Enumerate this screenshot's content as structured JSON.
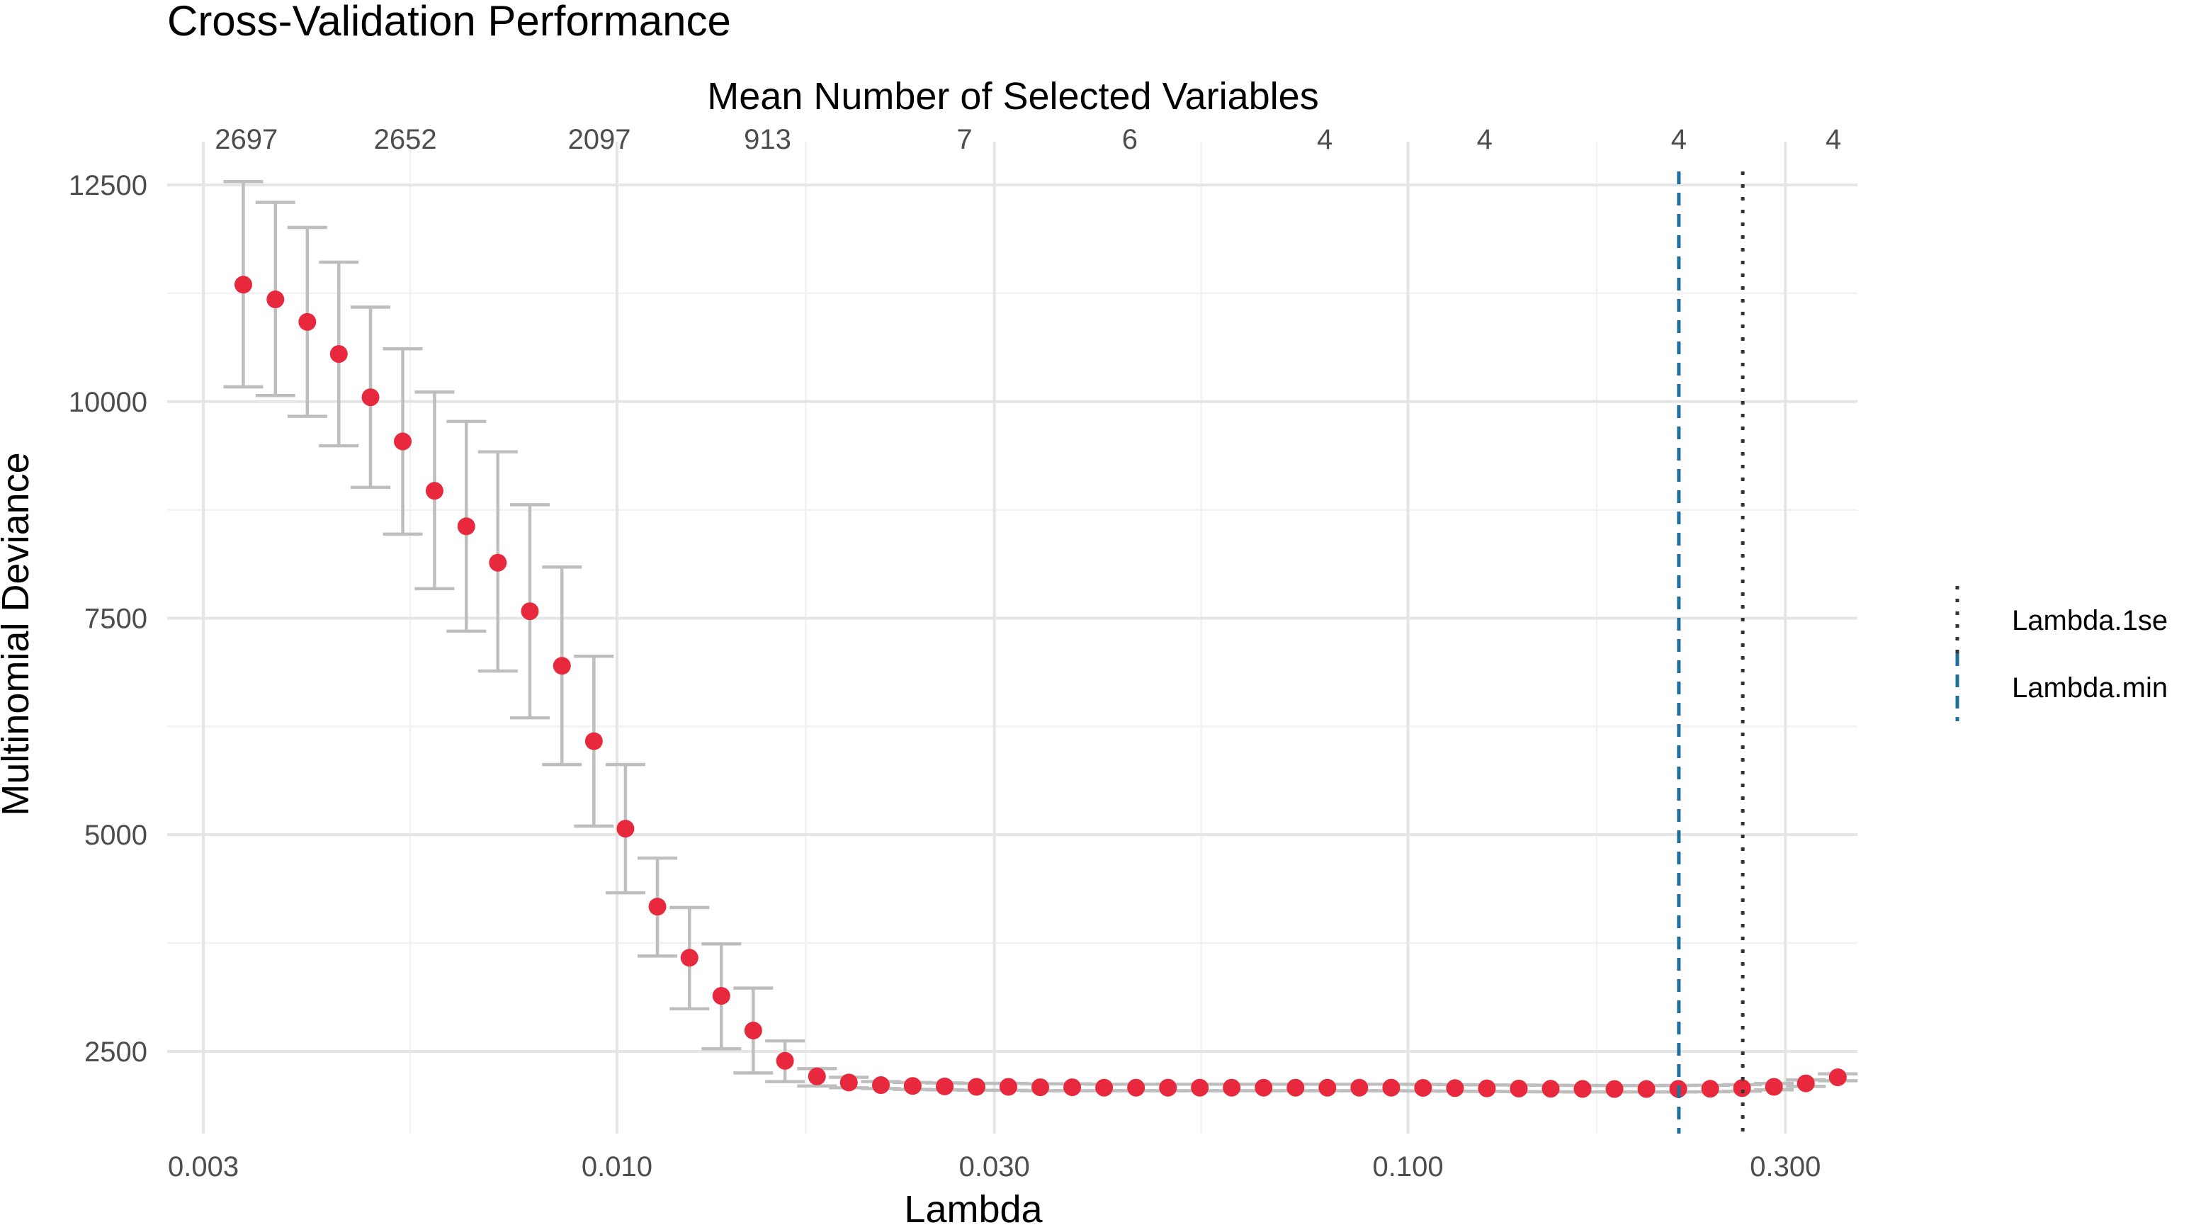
{
  "chart_data": {
    "type": "scatter",
    "title": "Cross-Validation Performance",
    "xlabel": "Lambda",
    "ylabel": "Multinomial Deviance",
    "secondary_xlabel": "Mean Number of Selected Variables",
    "x_scale": "log10",
    "xlim": [
      0.0027,
      0.37
    ],
    "ylim": [
      1550,
      13000
    ],
    "grid": true,
    "x_ticks": [
      {
        "value": 0.003,
        "label": "0.003"
      },
      {
        "value": 0.01,
        "label": "0.010"
      },
      {
        "value": 0.03,
        "label": "0.030"
      },
      {
        "value": 0.1,
        "label": "0.100"
      },
      {
        "value": 0.3,
        "label": "0.300"
      }
    ],
    "y_ticks": [
      {
        "value": 2500,
        "label": "2500"
      },
      {
        "value": 5000,
        "label": "5000"
      },
      {
        "value": 7500,
        "label": "7500"
      },
      {
        "value": 10000,
        "label": "10000"
      },
      {
        "value": 12500,
        "label": "12500"
      }
    ],
    "top_ticks": [
      {
        "value": 0.0034,
        "label": "2697"
      },
      {
        "value": 0.0054,
        "label": "2652"
      },
      {
        "value": 0.0095,
        "label": "2097"
      },
      {
        "value": 0.0155,
        "label": "913"
      },
      {
        "value": 0.0275,
        "label": "7"
      },
      {
        "value": 0.0445,
        "label": "6"
      },
      {
        "value": 0.0785,
        "label": "4"
      },
      {
        "value": 0.125,
        "label": "4"
      },
      {
        "value": 0.22,
        "label": "4"
      },
      {
        "value": 0.345,
        "label": "4"
      }
    ],
    "series": [
      {
        "color": "#e8283c",
        "errorbar_color": "#bebebe",
        "x": [
          0.00337,
          0.0037,
          0.00406,
          0.00445,
          0.00488,
          0.00536,
          0.00588,
          0.00645,
          0.00707,
          0.00776,
          0.00852,
          0.00935,
          0.01025,
          0.01125,
          0.01235,
          0.01355,
          0.01487,
          0.01631,
          0.0179,
          0.01964,
          0.02156,
          0.02365,
          0.02596,
          0.02848,
          0.03125,
          0.03429,
          0.03763,
          0.04129,
          0.04531,
          0.04972,
          0.05455,
          0.05986,
          0.06569,
          0.07208,
          0.07909,
          0.08679,
          0.09523,
          0.1045,
          0.11467,
          0.12582,
          0.13807,
          0.1515,
          0.16624,
          0.18242,
          0.20017,
          0.21965,
          0.24102,
          0.26447,
          0.29021,
          0.31845,
          0.34944
        ],
        "values": [
          11350,
          11180,
          10920,
          10550,
          10050,
          9540,
          8970,
          8560,
          8140,
          7580,
          6950,
          6080,
          5070,
          4170,
          3580,
          3140,
          2740,
          2390,
          2210,
          2140,
          2110,
          2100,
          2095,
          2090,
          2090,
          2085,
          2085,
          2080,
          2080,
          2080,
          2080,
          2080,
          2080,
          2080,
          2080,
          2080,
          2080,
          2078,
          2075,
          2072,
          2070,
          2068,
          2066,
          2065,
          2065,
          2066,
          2068,
          2075,
          2090,
          2130,
          2200
        ],
        "lower": [
          10170,
          10070,
          9830,
          9490,
          9010,
          8470,
          7840,
          7350,
          6890,
          6350,
          5810,
          5100,
          4330,
          3600,
          2990,
          2530,
          2250,
          2150,
          2100,
          2080,
          2070,
          2060,
          2055,
          2050,
          2050,
          2045,
          2045,
          2045,
          2045,
          2045,
          2045,
          2045,
          2045,
          2045,
          2045,
          2045,
          2045,
          2043,
          2040,
          2038,
          2035,
          2033,
          2031,
          2030,
          2030,
          2031,
          2033,
          2040,
          2055,
          2095,
          2160
        ],
        "upper": [
          12540,
          12300,
          12010,
          11610,
          11090,
          10610,
          10110,
          9770,
          9420,
          8810,
          8090,
          7060,
          5810,
          4730,
          4160,
          3740,
          3230,
          2620,
          2300,
          2200,
          2150,
          2140,
          2135,
          2130,
          2130,
          2125,
          2125,
          2120,
          2120,
          2120,
          2120,
          2120,
          2120,
          2120,
          2120,
          2120,
          2120,
          2118,
          2115,
          2112,
          2110,
          2108,
          2106,
          2105,
          2105,
          2106,
          2108,
          2115,
          2130,
          2170,
          2240
        ]
      }
    ],
    "reference_lines": [
      {
        "name": "Lambda.min",
        "value": 0.22,
        "color": "#1f6f9a",
        "dash": "dashed"
      },
      {
        "name": "Lambda.1se",
        "value": 0.265,
        "color": "#333333",
        "dash": "dotted"
      }
    ],
    "legend": {
      "position": "right",
      "entries": [
        "Lambda.1se",
        "Lambda.min"
      ]
    }
  }
}
